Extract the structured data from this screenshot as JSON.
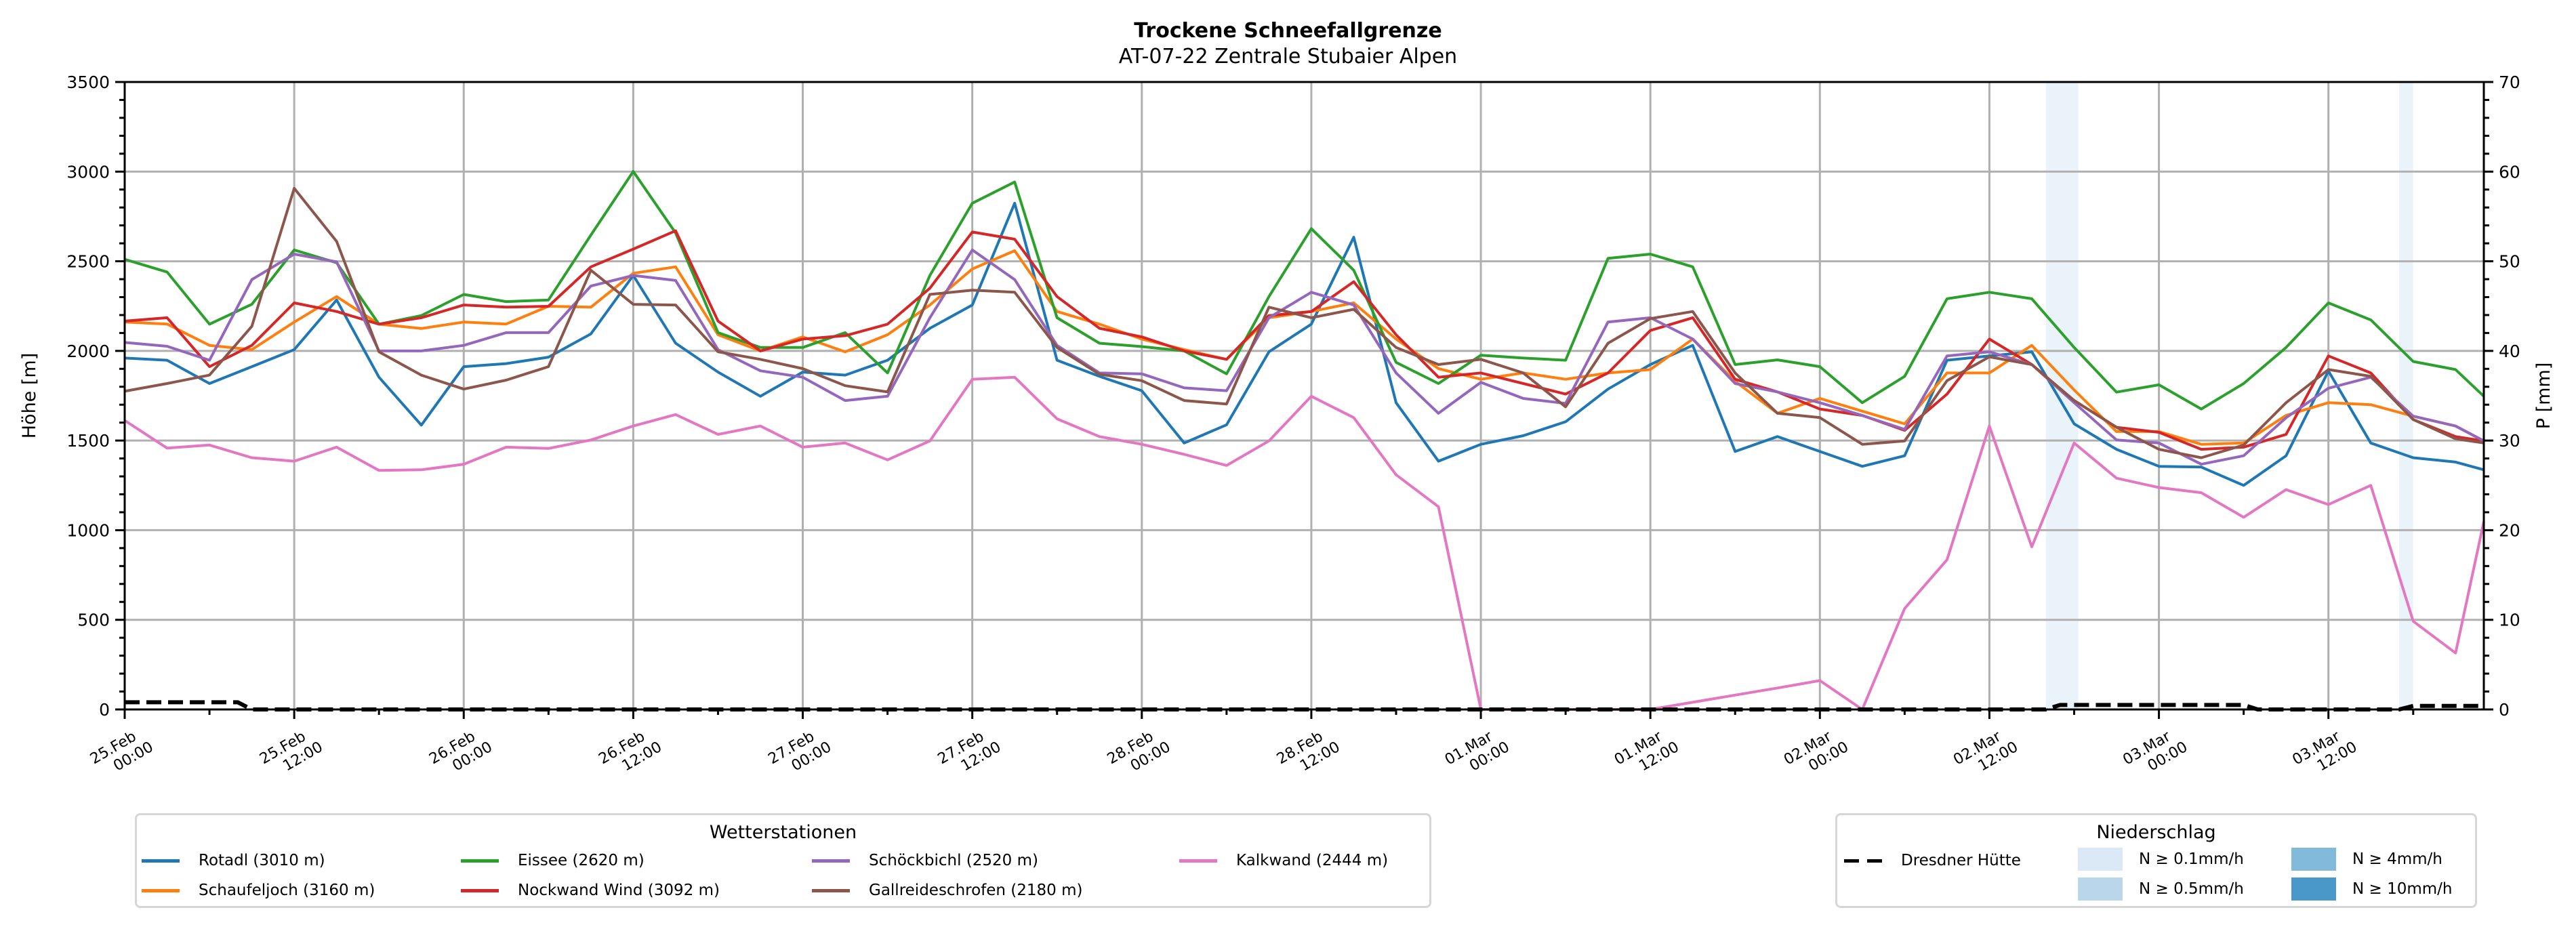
{
  "chart_data": {
    "type": "line",
    "title": "Trockene Schneefallgrenze",
    "subtitle": "AT-07-22 Zentrale Stubaier Alpen",
    "ylabel": "Höhe [m]",
    "ylabel_right": "P [mm]",
    "ylim": [
      0,
      3500
    ],
    "ylim_right": [
      0,
      70
    ],
    "yticks": [
      0,
      500,
      1000,
      1500,
      2000,
      2500,
      3000,
      3500
    ],
    "yticks_right": [
      0,
      10,
      20,
      30,
      40,
      50,
      60,
      70
    ],
    "x_unit": "hours since 25.Feb 00:00",
    "xlim_hours": [
      0,
      167
    ],
    "xtick_labels": [
      [
        "25.Feb",
        "00:00"
      ],
      [
        "25.Feb",
        "12:00"
      ],
      [
        "26.Feb",
        "00:00"
      ],
      [
        "26.Feb",
        "12:00"
      ],
      [
        "27.Feb",
        "00:00"
      ],
      [
        "27.Feb",
        "12:00"
      ],
      [
        "28.Feb",
        "00:00"
      ],
      [
        "28.Feb",
        "12:00"
      ],
      [
        "01.Mar",
        "00:00"
      ],
      [
        "01.Mar",
        "12:00"
      ],
      [
        "02.Mar",
        "00:00"
      ],
      [
        "02.Mar",
        "12:00"
      ],
      [
        "03.Mar",
        "00:00"
      ],
      [
        "03.Mar",
        "12:00"
      ]
    ],
    "grid": true,
    "x": [
      0,
      3,
      6,
      9,
      12,
      15,
      18,
      21,
      24,
      27,
      30,
      33,
      36,
      39,
      42,
      45,
      48,
      51,
      54,
      57,
      60,
      63,
      66,
      69,
      72,
      75,
      78,
      81,
      84,
      87,
      90,
      93,
      96,
      99,
      102,
      105,
      108,
      111,
      114,
      117,
      120,
      123,
      126,
      129,
      132,
      135,
      138,
      141,
      144,
      147,
      150,
      153,
      156,
      159,
      162,
      165,
      167
    ],
    "series": [
      {
        "name": "Rotadl (3010 m)",
        "color": "#1f77b4",
        "values": [
          1960,
          1948,
          1818,
          1912,
          2007,
          2284,
          1853,
          1586,
          1912,
          1929,
          1965,
          2095,
          2421,
          2043,
          1882,
          1747,
          1882,
          1865,
          1948,
          2126,
          2256,
          2824,
          1948,
          1858,
          1778,
          1486,
          1588,
          1995,
          2149,
          2634,
          1711,
          1385,
          1479,
          1527,
          1605,
          1787,
          1924,
          2031,
          1439,
          1522,
          1439,
          1356,
          1415,
          1948,
          1972,
          1995,
          1593,
          1451,
          1356,
          1352,
          1250,
          1415,
          1888,
          1486,
          1404,
          1380,
          1337
        ]
      },
      {
        "name": "Schaufeljoch (3160 m)",
        "color": "#ff7f0e",
        "values": [
          2161,
          2150,
          2031,
          2007,
          2161,
          2303,
          2149,
          2125,
          2161,
          2150,
          2249,
          2244,
          2433,
          2469,
          2090,
          2000,
          2078,
          1995,
          2090,
          2256,
          2457,
          2559,
          2220,
          2149,
          2066,
          2007,
          1953,
          2185,
          2220,
          2268,
          2066,
          1901,
          1842,
          1877,
          1842,
          1877,
          1896,
          2066,
          1830,
          1652,
          1735,
          1664,
          1593,
          1877,
          1877,
          2031,
          1782,
          1550,
          1550,
          1479,
          1486,
          1640,
          1711,
          1700,
          1636,
          1581,
          1498
        ]
      },
      {
        "name": "Eissee (2620 m)",
        "color": "#2ca02c",
        "values": [
          2511,
          2440,
          2149,
          2260,
          2563,
          2492,
          2149,
          2197,
          2315,
          2275,
          2284,
          2646,
          3001,
          2658,
          2102,
          2019,
          2019,
          2102,
          1877,
          2421,
          2824,
          2942,
          2185,
          2043,
          2024,
          2000,
          1872,
          2303,
          2682,
          2450,
          1936,
          1818,
          1976,
          1960,
          1948,
          2516,
          2540,
          2469,
          1924,
          1950,
          1912,
          1711,
          1858,
          2291,
          2327,
          2291,
          2019,
          1770,
          1811,
          1676,
          1818,
          2019,
          2268,
          2173,
          1941,
          1896,
          1747
        ]
      },
      {
        "name": "Nockwand Wind (3092 m)",
        "color": "#d62728",
        "values": [
          2166,
          2185,
          1912,
          2031,
          2268,
          2220,
          2149,
          2185,
          2256,
          2244,
          2249,
          2469,
          2568,
          2670,
          2166,
          2000,
          2066,
          2085,
          2149,
          2350,
          2663,
          2623,
          2303,
          2126,
          2078,
          2000,
          1953,
          2197,
          2220,
          2386,
          2090,
          1853,
          1877,
          1818,
          1759,
          1877,
          2114,
          2185,
          1842,
          1771,
          1676,
          1640,
          1557,
          1759,
          2066,
          1924,
          1723,
          1574,
          1546,
          1451,
          1463,
          1534,
          1972,
          1877,
          1617,
          1522,
          1498
        ]
      },
      {
        "name": "Schöckbichl (2520 m)",
        "color": "#9467bd",
        "values": [
          2047,
          2026,
          1948,
          2398,
          2540,
          2497,
          2000,
          2000,
          2031,
          2102,
          2102,
          2362,
          2421,
          2393,
          2007,
          1889,
          1853,
          1723,
          1747,
          2185,
          2563,
          2398,
          2031,
          1877,
          1872,
          1794,
          1778,
          2185,
          2327,
          2256,
          1877,
          1652,
          1825,
          1735,
          1707,
          2161,
          2185,
          2066,
          1818,
          1771,
          1711,
          1640,
          1562,
          1972,
          1995,
          1924,
          1711,
          1503,
          1486,
          1368,
          1415,
          1627,
          1792,
          1853,
          1636,
          1581,
          1498
        ]
      },
      {
        "name": "Gallreideschrofen (2180 m)",
        "color": "#8c564b",
        "values": [
          1775,
          1818,
          1865,
          2137,
          2907,
          2611,
          1995,
          1865,
          1787,
          1837,
          1912,
          2450,
          2260,
          2256,
          1995,
          1953,
          1901,
          1806,
          1771,
          2315,
          2339,
          2327,
          2019,
          1870,
          1834,
          1723,
          1704,
          2244,
          2185,
          2232,
          2019,
          1924,
          1953,
          1877,
          1688,
          2043,
          2180,
          2220,
          1877,
          1652,
          1628,
          1479,
          1498,
          1834,
          1967,
          1924,
          1723,
          1574,
          1451,
          1404,
          1475,
          1711,
          1896,
          1858,
          1617,
          1510,
          1486
        ]
      },
      {
        "name": "Kalkwand (2444 m)",
        "color": "#e377c2",
        "values": [
          1612,
          1458,
          1475,
          1404,
          1385,
          1463,
          1333,
          1337,
          1368,
          1463,
          1456,
          1503,
          1581,
          1645,
          1534,
          1581,
          1463,
          1486,
          1392,
          1498,
          1842,
          1853,
          1621,
          1522,
          1479,
          1423,
          1361,
          1498,
          1747,
          1628,
          1309,
          1131,
          0,
          0,
          0,
          0,
          0,
          40,
          80,
          120,
          161,
          0,
          563,
          835,
          1581,
          907,
          1486,
          1290,
          1238,
          1209,
          1072,
          1226,
          1143,
          1250,
          492,
          315,
          1048
        ]
      }
    ],
    "precip_series": {
      "name": "Dresdner Hütte",
      "color": "#000000",
      "points": [
        [
          0,
          0.8
        ],
        [
          8,
          0.8
        ],
        [
          9,
          0
        ],
        [
          136,
          0
        ],
        [
          137,
          0.5
        ],
        [
          150,
          0.5
        ],
        [
          151,
          0
        ],
        [
          161,
          0
        ],
        [
          162,
          0.4
        ],
        [
          167,
          0.4
        ]
      ]
    },
    "precip_bands": [
      {
        "start": 136,
        "end": 138.3,
        "class": 0
      },
      {
        "start": 161,
        "end": 162,
        "class": 0
      }
    ],
    "legend_stations": {
      "title": "Wetterstationen",
      "placement": "bottom-left"
    },
    "legend_precip": {
      "title": "Niederschlag",
      "placement": "bottom-right",
      "classes": [
        {
          "label": "N ≥ 0.1mm/h",
          "color": "#dbe9f6"
        },
        {
          "label": "N ≥ 0.5mm/h",
          "color": "#bad6eb"
        },
        {
          "label": "N ≥ 4mm/h",
          "color": "#82badb"
        },
        {
          "label": "N ≥ 10mm/h",
          "color": "#4a98c9"
        }
      ]
    }
  }
}
